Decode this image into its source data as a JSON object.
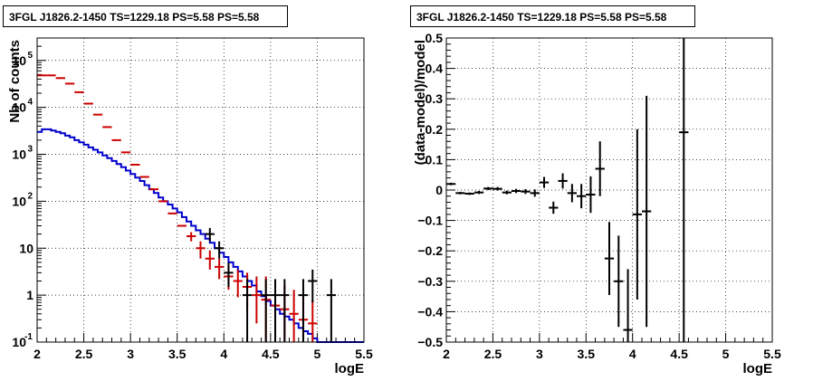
{
  "chart_data": [
    {
      "type": "line",
      "title": "3FGL J1826.2-1450 TS=1229.18 PS=5.58 PS=5.58",
      "xlabel": "logE",
      "ylabel": "Nb of counts",
      "xlim": [
        2,
        5.5
      ],
      "ylim": [
        0.1,
        300000
      ],
      "yscale": "log",
      "grid": true,
      "x_ticks": [
        "2",
        "2.5",
        "3",
        "3.5",
        "4",
        "4.5",
        "5",
        "5.5"
      ],
      "y_ticks": [
        "10^-1",
        "1",
        "10",
        "10^2",
        "10^3",
        "10^4",
        "10^5"
      ],
      "series": [
        {
          "color": "#cc0000",
          "style": "markers-with-errorbars",
          "points": [
            {
              "x": 2.05,
              "y": 48000,
              "ylo": 48000,
              "yhi": 48000
            },
            {
              "x": 2.15,
              "y": 48000,
              "ylo": 48000,
              "yhi": 48000
            },
            {
              "x": 2.25,
              "y": 42000,
              "ylo": 42000,
              "yhi": 42000
            },
            {
              "x": 2.35,
              "y": 32000,
              "ylo": 32000,
              "yhi": 32000
            },
            {
              "x": 2.45,
              "y": 21000,
              "ylo": 21000,
              "yhi": 21000
            },
            {
              "x": 2.55,
              "y": 12000,
              "ylo": 12000,
              "yhi": 12000
            },
            {
              "x": 2.65,
              "y": 7000,
              "ylo": 7000,
              "yhi": 7000
            },
            {
              "x": 2.75,
              "y": 3800,
              "ylo": 3800,
              "yhi": 3800
            },
            {
              "x": 2.85,
              "y": 2000,
              "ylo": 2000,
              "yhi": 2000
            },
            {
              "x": 2.95,
              "y": 1100,
              "ylo": 1100,
              "yhi": 1100
            },
            {
              "x": 3.05,
              "y": 600,
              "ylo": 600,
              "yhi": 600
            },
            {
              "x": 3.15,
              "y": 330,
              "ylo": 330,
              "yhi": 330
            },
            {
              "x": 3.25,
              "y": 180,
              "ylo": 180,
              "yhi": 180
            },
            {
              "x": 3.35,
              "y": 100,
              "ylo": 100,
              "yhi": 100
            },
            {
              "x": 3.45,
              "y": 55,
              "ylo": 55,
              "yhi": 55
            },
            {
              "x": 3.55,
              "y": 30,
              "ylo": 30,
              "yhi": 30
            },
            {
              "x": 3.65,
              "y": 18,
              "ylo": 14,
              "yhi": 22
            },
            {
              "x": 3.75,
              "y": 10,
              "ylo": 6,
              "yhi": 14
            },
            {
              "x": 3.85,
              "y": 6,
              "ylo": 3.5,
              "yhi": 9
            },
            {
              "x": 3.95,
              "y": 4,
              "ylo": 2.2,
              "yhi": 6
            },
            {
              "x": 4.05,
              "y": 2.5,
              "ylo": 1.3,
              "yhi": 4
            },
            {
              "x": 4.15,
              "y": 2,
              "ylo": 0.9,
              "yhi": 3.5
            },
            {
              "x": 4.25,
              "y": 1.5,
              "ylo": 0.5,
              "yhi": 3
            },
            {
              "x": 4.35,
              "y": 1,
              "ylo": 0.25,
              "yhi": 2.5
            },
            {
              "x": 4.45,
              "y": 0.8,
              "ylo": 0.1,
              "yhi": 2.5
            },
            {
              "x": 4.55,
              "y": 0.6,
              "ylo": 0.1,
              "yhi": 2
            },
            {
              "x": 4.65,
              "y": 0.5,
              "ylo": 0.1,
              "yhi": 1.6
            },
            {
              "x": 4.75,
              "y": 0.4,
              "ylo": 0.1,
              "yhi": 1.3
            },
            {
              "x": 4.85,
              "y": 0.3,
              "ylo": 0.1,
              "yhi": 1.0
            },
            {
              "x": 4.95,
              "y": 0.25,
              "ylo": 0.1,
              "yhi": 0.8
            }
          ]
        },
        {
          "color": "#0000cc",
          "style": "step",
          "bin_edges": [
            2.0,
            2.05,
            2.1,
            2.15,
            2.2,
            2.25,
            2.3,
            2.35,
            2.4,
            2.45,
            2.5,
            2.55,
            2.6,
            2.65,
            2.7,
            2.75,
            2.8,
            2.85,
            2.9,
            2.95,
            3.0,
            3.05,
            3.1,
            3.15,
            3.2,
            3.25,
            3.3,
            3.35,
            3.4,
            3.45,
            3.5,
            3.55,
            3.6,
            3.65,
            3.7,
            3.75,
            3.8,
            3.85,
            3.9,
            3.95,
            4.0,
            4.05,
            4.1,
            4.15,
            4.2,
            4.25,
            4.3,
            4.35,
            4.4,
            4.45,
            4.5,
            4.55,
            4.6,
            4.65,
            4.7,
            4.75,
            4.8,
            4.85,
            4.9,
            4.95,
            5.0,
            5.05,
            5.1,
            5.15,
            5.2,
            5.25,
            5.3,
            5.35,
            5.4,
            5.45,
            5.5
          ],
          "values": [
            3000,
            3400,
            3400,
            3200,
            3000,
            2800,
            2500,
            2300,
            2000,
            1800,
            1600,
            1400,
            1250,
            1100,
            950,
            830,
            720,
            620,
            530,
            450,
            380,
            320,
            270,
            220,
            180,
            150,
            120,
            100,
            85,
            70,
            58,
            46,
            37,
            30,
            24,
            20,
            16,
            13,
            10,
            8,
            6.5,
            5,
            4,
            3.2,
            2.5,
            2,
            1.6,
            1.2,
            0.95,
            0.75,
            0.6,
            0.5,
            0.4,
            0.35,
            0.3,
            0.25,
            0.2,
            0.17,
            0.15,
            0.12,
            0.1,
            0.1,
            0.1,
            0.1,
            0.1,
            0.1,
            0.1,
            0.1,
            0.1,
            0.1
          ]
        },
        {
          "color": "#000000",
          "style": "markers-with-errorbars",
          "points": [
            {
              "x": 3.85,
              "y": 20,
              "ylo": 14,
              "yhi": 27
            },
            {
              "x": 3.95,
              "y": 10,
              "ylo": 6,
              "yhi": 14
            },
            {
              "x": 4.05,
              "y": 3,
              "ylo": 1.5,
              "yhi": 5
            },
            {
              "x": 4.25,
              "y": 1,
              "ylo": 0.1,
              "yhi": 2.2
            },
            {
              "x": 4.45,
              "y": 1,
              "ylo": 0.1,
              "yhi": 2.2
            },
            {
              "x": 4.55,
              "y": 1,
              "ylo": 0.1,
              "yhi": 2.2
            },
            {
              "x": 4.65,
              "y": 1,
              "ylo": 0.1,
              "yhi": 2.2
            },
            {
              "x": 4.85,
              "y": 1,
              "ylo": 0.1,
              "yhi": 2.2
            },
            {
              "x": 4.95,
              "y": 2,
              "ylo": 0.7,
              "yhi": 3.5
            },
            {
              "x": 5.15,
              "y": 1,
              "ylo": 0.1,
              "yhi": 2.2
            }
          ]
        }
      ]
    },
    {
      "type": "scatter",
      "title": "3FGL J1826.2-1450 TS=1229.18 PS=5.58 PS=5.58",
      "xlabel": "logE",
      "ylabel": "(data-model)/model",
      "xlim": [
        2,
        5.5
      ],
      "ylim": [
        -0.5,
        0.5
      ],
      "grid": true,
      "x_ticks": [
        "2",
        "2.5",
        "3",
        "3.5",
        "4",
        "4.5",
        "5",
        "5.5"
      ],
      "y_ticks": [
        "-0.5",
        "-0.4",
        "-0.3",
        "-0.2",
        "-0.1",
        "0",
        "0.1",
        "0.2",
        "0.3",
        "0.4",
        "0.5"
      ],
      "series": [
        {
          "color": "#000000",
          "style": "markers-with-errorbars",
          "points": [
            {
              "x": 2.05,
              "y": 0.02,
              "err": 0.004
            },
            {
              "x": 2.15,
              "y": -0.01,
              "err": 0.004
            },
            {
              "x": 2.25,
              "y": -0.012,
              "err": 0.004
            },
            {
              "x": 2.35,
              "y": -0.008,
              "err": 0.005
            },
            {
              "x": 2.45,
              "y": 0.005,
              "err": 0.005
            },
            {
              "x": 2.55,
              "y": 0.004,
              "err": 0.006
            },
            {
              "x": 2.65,
              "y": -0.008,
              "err": 0.006
            },
            {
              "x": 2.75,
              "y": -0.003,
              "err": 0.007
            },
            {
              "x": 2.85,
              "y": -0.005,
              "err": 0.008
            },
            {
              "x": 2.95,
              "y": -0.01,
              "err": 0.012
            },
            {
              "x": 3.05,
              "y": 0.025,
              "err": 0.018
            },
            {
              "x": 3.15,
              "y": -0.058,
              "err": 0.02
            },
            {
              "x": 3.25,
              "y": 0.03,
              "err": 0.025
            },
            {
              "x": 3.35,
              "y": -0.01,
              "err": 0.03
            },
            {
              "x": 3.45,
              "y": -0.02,
              "err": 0.04
            },
            {
              "x": 3.55,
              "y": -0.015,
              "err": 0.06
            },
            {
              "x": 3.65,
              "y": 0.07,
              "err": 0.09
            },
            {
              "x": 3.75,
              "y": -0.225,
              "err": 0.12
            },
            {
              "x": 3.85,
              "y": -0.3,
              "err": 0.15
            },
            {
              "x": 3.95,
              "y": -0.46,
              "err": 0.2
            },
            {
              "x": 4.05,
              "y": -0.08,
              "err": 0.28
            },
            {
              "x": 4.15,
              "y": -0.07,
              "err": 0.38
            },
            {
              "x": 4.55,
              "y": 0.19,
              "err": 0.8
            }
          ]
        }
      ]
    }
  ]
}
